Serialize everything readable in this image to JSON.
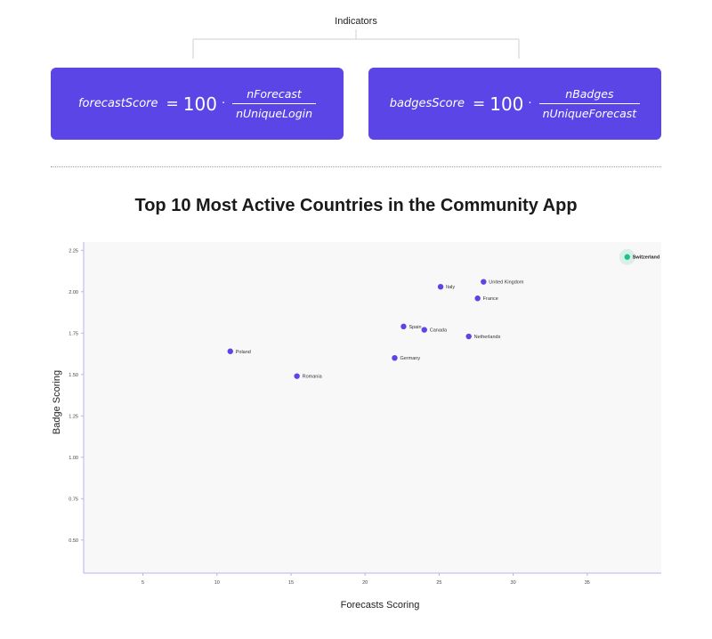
{
  "indicators_label": "Indicators",
  "formulas": {
    "forecast": {
      "lhs": "forecastScore",
      "equals": "=",
      "constant": "100",
      "dot": "·",
      "numerator": "nForecast",
      "denominator": "nUniqueLogin"
    },
    "badges": {
      "lhs": "badgesScore",
      "equals": "=",
      "constant": "100",
      "dot": "·",
      "numerator": "nBadges",
      "denominator": "nUniqueForecast"
    }
  },
  "colors": {
    "card": "#5b45e6",
    "point": "#5b45e6",
    "highlight": "#1fc08f",
    "plot_bg": "#f8f8f8",
    "axis": "#b9b2ee"
  },
  "chart_data": {
    "type": "scatter",
    "title": "Top 10 Most Active Countries in the Community App",
    "xlabel": "Forecasts Scoring",
    "ylabel": "Badge Scoring",
    "xlim": [
      1,
      40
    ],
    "ylim": [
      0.3,
      2.3
    ],
    "xticks": [
      5,
      10,
      15,
      20,
      25,
      30,
      35
    ],
    "yticks": [
      0.5,
      0.75,
      1.0,
      1.25,
      1.5,
      1.75,
      2.0,
      2.25
    ],
    "ytick_labels": [
      "0.50",
      "0.75",
      "1.00",
      "1.25",
      "1.50",
      "1.75",
      "2.00",
      "2.25"
    ],
    "grid": false,
    "points": [
      {
        "label": "Switzerland",
        "x": 37.7,
        "y": 2.21,
        "highlight": true
      },
      {
        "label": "United Kingdom",
        "x": 28.0,
        "y": 2.06,
        "highlight": false
      },
      {
        "label": "Italy",
        "x": 25.1,
        "y": 2.03,
        "highlight": false
      },
      {
        "label": "France",
        "x": 27.6,
        "y": 1.96,
        "highlight": false
      },
      {
        "label": "Spain",
        "x": 22.6,
        "y": 1.79,
        "highlight": false
      },
      {
        "label": "Canada",
        "x": 24.0,
        "y": 1.77,
        "highlight": false
      },
      {
        "label": "Netherlands",
        "x": 27.0,
        "y": 1.73,
        "highlight": false
      },
      {
        "label": "Poland",
        "x": 10.9,
        "y": 1.64,
        "highlight": false
      },
      {
        "label": "Germany",
        "x": 22.0,
        "y": 1.6,
        "highlight": false
      },
      {
        "label": "Romania",
        "x": 15.4,
        "y": 1.49,
        "highlight": false
      }
    ]
  }
}
